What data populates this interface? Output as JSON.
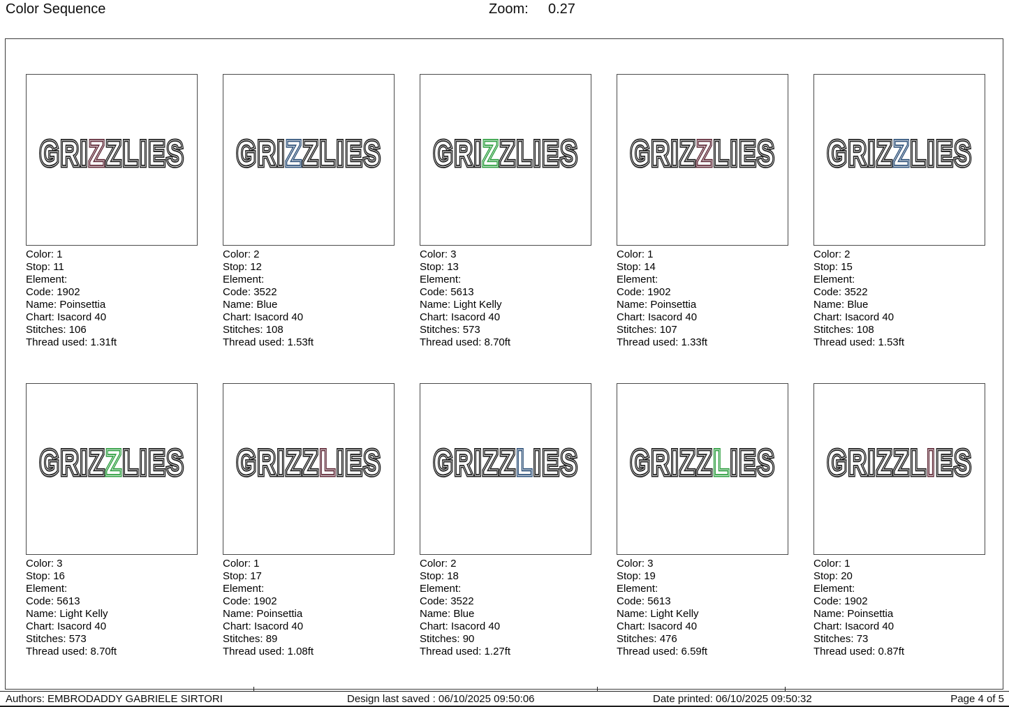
{
  "header": {
    "title": "Color Sequence",
    "zoom_label": "Zoom:",
    "zoom_value": "0.27"
  },
  "word": "GRIZZLIES",
  "palette": {
    "poinsettia": "#5e2836",
    "blue": "#2d5078",
    "light_kelly": "#2e9e40",
    "outline": "#1e1e1e"
  },
  "cells": [
    {
      "highlight_index": 3,
      "highlight_color": "poinsettia",
      "lines": [
        "Color: 1",
        "Stop: 11",
        "Element:",
        "Code: 1902",
        "Name: Poinsettia",
        "Chart: Isacord 40",
        "Stitches: 106",
        "Thread used: 1.31ft"
      ]
    },
    {
      "highlight_index": 3,
      "highlight_color": "blue",
      "lines": [
        "Color: 2",
        "Stop: 12",
        "Element:",
        "Code: 3522",
        "Name: Blue",
        "Chart: Isacord 40",
        "Stitches: 108",
        "Thread used: 1.53ft"
      ]
    },
    {
      "highlight_index": 3,
      "highlight_color": "light_kelly",
      "lines": [
        "Color: 3",
        "Stop: 13",
        "Element:",
        "Code: 5613",
        "Name: Light Kelly",
        "Chart: Isacord 40",
        "Stitches: 573",
        "Thread used: 8.70ft"
      ]
    },
    {
      "highlight_index": 4,
      "highlight_color": "poinsettia",
      "lines": [
        "Color: 1",
        "Stop: 14",
        "Element:",
        "Code: 1902",
        "Name: Poinsettia",
        "Chart: Isacord 40",
        "Stitches: 107",
        "Thread used: 1.33ft"
      ]
    },
    {
      "highlight_index": 4,
      "highlight_color": "blue",
      "lines": [
        "Color: 2",
        "Stop: 15",
        "Element:",
        "Code: 3522",
        "Name: Blue",
        "Chart: Isacord 40",
        "Stitches: 108",
        "Thread used: 1.53ft"
      ]
    },
    {
      "highlight_index": 4,
      "highlight_color": "light_kelly",
      "lines": [
        "Color: 3",
        "Stop: 16",
        "Element:",
        "Code: 5613",
        "Name: Light Kelly",
        "Chart: Isacord 40",
        "Stitches: 573",
        "Thread used: 8.70ft"
      ]
    },
    {
      "highlight_index": 5,
      "highlight_color": "poinsettia",
      "lines": [
        "Color: 1",
        "Stop: 17",
        "Element:",
        "Code: 1902",
        "Name: Poinsettia",
        "Chart: Isacord 40",
        "Stitches: 89",
        "Thread used: 1.08ft"
      ]
    },
    {
      "highlight_index": 5,
      "highlight_color": "blue",
      "lines": [
        "Color: 2",
        "Stop: 18",
        "Element:",
        "Code: 3522",
        "Name: Blue",
        "Chart: Isacord 40",
        "Stitches: 90",
        "Thread used: 1.27ft"
      ]
    },
    {
      "highlight_index": 5,
      "highlight_color": "light_kelly",
      "lines": [
        "Color: 3",
        "Stop: 19",
        "Element:",
        "Code: 5613",
        "Name: Light Kelly",
        "Chart: Isacord 40",
        "Stitches: 476",
        "Thread used: 6.59ft"
      ]
    },
    {
      "highlight_index": 6,
      "highlight_color": "poinsettia",
      "lines": [
        "Color: 1",
        "Stop: 20",
        "Element:",
        "Code: 1902",
        "Name: Poinsettia",
        "Chart: Isacord 40",
        "Stitches: 73",
        "Thread used: 0.87ft"
      ]
    }
  ],
  "footer": {
    "authors": "Authors: EMBRODADDY GABRIELE SIRTORI",
    "last_saved": "Design last saved : 06/10/2025 09:50:06",
    "printed": "Date printed: 06/10/2025 09:50:32",
    "page": "Page 4 of 5"
  }
}
